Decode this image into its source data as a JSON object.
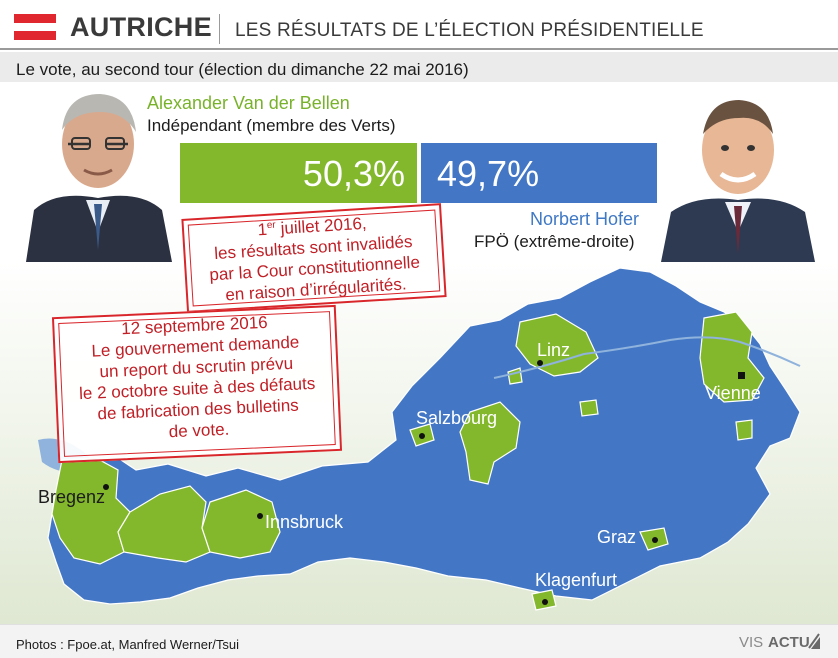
{
  "header": {
    "country": "AUTRICHE",
    "headline": "LES RÉSULTATS DE L’ÉLECTION PRÉSIDENTIELLE",
    "subtitle": "Le vote, au second tour (élection du dimanche 22 mai 2016)"
  },
  "colors": {
    "van_der_bellen": "#83b82c",
    "hofer": "#4377c5",
    "stamp": "#d8262b",
    "flag_red": "#e0262f"
  },
  "candidates": {
    "van_der_bellen": {
      "name": "Alexander Van der Bellen",
      "party": "Indépendant (membre des Verts)",
      "percent_label": "50,3%",
      "percent": 50.3
    },
    "hofer": {
      "name": "Norbert Hofer",
      "party": "FPÖ (extrême-droite)",
      "percent_label": "49,7%",
      "percent": 49.7
    }
  },
  "stamps": {
    "invalidation": {
      "date_day": "1",
      "date_sup": "er",
      "date_rest": " juillet 2016,",
      "lines": [
        "les résultats sont invalidés",
        "par la Cour constitutionnelle",
        "en raison d’irrégularités."
      ]
    },
    "postponement": {
      "title": "12 septembre 2016",
      "lines": [
        "Le gouvernement demande",
        "un report du scrutin prévu",
        "le 2 octobre suite à des défauts",
        "de fabrication des bulletins",
        "de vote."
      ]
    }
  },
  "cities": {
    "linz": "Linz",
    "vienne": "Vienne",
    "salzbourg": "Salzbourg",
    "bregenz": "Bregenz",
    "innsbruck": "Innsbruck",
    "graz": "Graz",
    "klagenfurt": "Klagenfurt"
  },
  "footer": {
    "credits": "Photos : Fpoe.at, Manfred Werner/Tsui",
    "logo_vis": "VIS",
    "logo_actu": "ACTU"
  }
}
